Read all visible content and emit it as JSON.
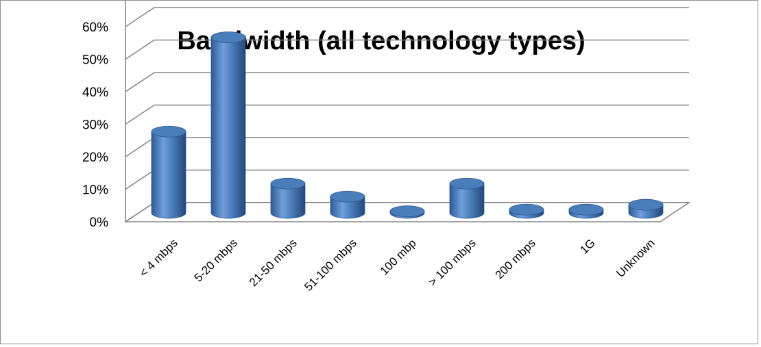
{
  "chart_data": {
    "type": "bar",
    "title": "Bandwidth (all technology types)",
    "categories": [
      "< 4 mbps",
      "5-20 mbps",
      "21-50 mbps",
      "51-100 mbps",
      "100 mbp",
      "> 100 mbps",
      "200 mbps",
      "1G",
      "Unknown"
    ],
    "values": [
      0.25,
      0.54,
      0.09,
      0.05,
      0.005,
      0.09,
      0.01,
      0.01,
      0.025
    ],
    "yticks": [
      "0%",
      "10%",
      "20%",
      "30%",
      "40%",
      "50%",
      "60%"
    ],
    "ylim": [
      0,
      0.6
    ],
    "ylabel": "",
    "xlabel": "",
    "style": "3d-cylinder",
    "grid": true,
    "legend": "none",
    "colors": {
      "bar": "#4a7ebb",
      "bar_dark": "#2c5a94",
      "bar_light": "#8db3e2",
      "grid": "#868686"
    }
  }
}
